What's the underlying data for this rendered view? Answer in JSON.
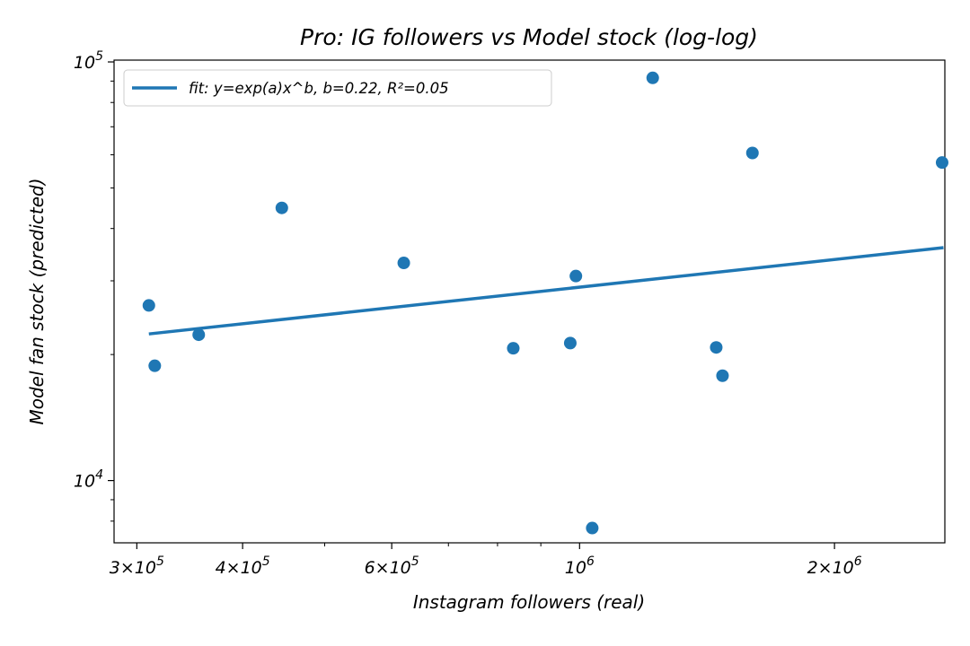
{
  "chart_data": {
    "type": "scatter",
    "title": "Pro: IG followers vs Model stock (log-log)",
    "xlabel": "Instagram followers (real)",
    "ylabel": "Model fan stock (predicted)",
    "xscale": "log",
    "yscale": "log",
    "xlim": [
      282000,
      2700000
    ],
    "ylim": [
      7100,
      101000
    ],
    "x_ticks": [
      {
        "value": 300000,
        "label_base": "3×10",
        "label_exp": "5"
      },
      {
        "value": 400000,
        "label_base": "4×10",
        "label_exp": "5"
      },
      {
        "value": 600000,
        "label_base": "6×10",
        "label_exp": "5"
      },
      {
        "value": 1000000,
        "label_base": "10",
        "label_exp": "6"
      },
      {
        "value": 2000000,
        "label_base": "2×10",
        "label_exp": "6"
      }
    ],
    "x_minor_ticks": [
      500000,
      700000,
      800000,
      900000
    ],
    "y_ticks": [
      {
        "value": 10000,
        "label_base": "10",
        "label_exp": "4"
      },
      {
        "value": 100000,
        "label_base": "10",
        "label_exp": "5"
      }
    ],
    "y_minor_ticks": [
      8000,
      9000,
      20000,
      30000,
      40000,
      50000,
      60000,
      70000,
      80000,
      90000
    ],
    "grid": false,
    "legend_position": "top-left",
    "series": [
      {
        "kind": "scatter",
        "color": "#1f77b4",
        "x": [
          310000,
          315000,
          355000,
          445000,
          620000,
          835000,
          975000,
          990000,
          1035000,
          1220000,
          1450000,
          1475000,
          1600000,
          2680000
        ],
        "y": [
          26200,
          18800,
          22300,
          44800,
          33100,
          20700,
          21300,
          30800,
          7700,
          91600,
          20800,
          17800,
          60600,
          57500
        ]
      },
      {
        "kind": "line",
        "name": "fit: y=exp(a)x^b, b=0.22, R²=0.05",
        "color": "#1f77b4",
        "fit": {
          "x_start": 310000,
          "y_start": 22400,
          "x_end": 2690000,
          "y_end": 36000
        }
      }
    ]
  }
}
